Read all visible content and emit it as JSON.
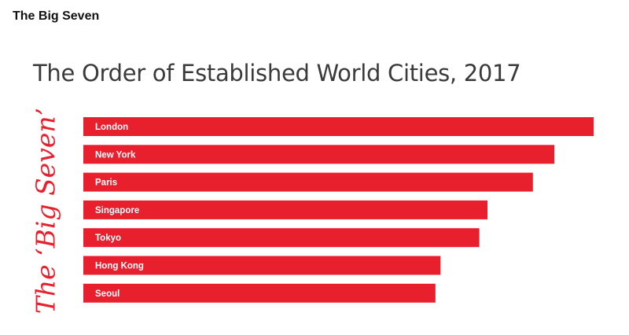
{
  "header": {
    "title": "The Big Seven"
  },
  "chart_data": {
    "type": "bar",
    "orientation": "horizontal",
    "title": "The Order of Established World Cities, 2017",
    "side_label": "The ‘Big Seven’",
    "categories": [
      "London",
      "New York",
      "Paris",
      "Singapore",
      "Tokyo",
      "Hong Kong",
      "Seoul"
    ],
    "values": [
      100,
      92.3,
      88.1,
      79.2,
      77.6,
      70.0,
      69.0
    ],
    "bar_color": "#e8202e",
    "label_color": "#ffffff",
    "legend": "none",
    "grid": false
  }
}
